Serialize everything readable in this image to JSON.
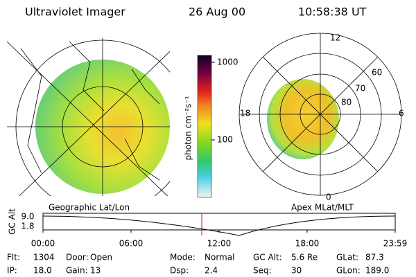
{
  "header": {
    "title": "Ultraviolet Imager",
    "date": "26 Aug 00",
    "time": "10:58:38 UT"
  },
  "colorbar": {
    "label": "photon cm⁻²s⁻¹",
    "ticks": [
      "1000",
      "100"
    ]
  },
  "geo_map": {
    "label": "Geographic Lat/Lon"
  },
  "polar_map": {
    "label": "Apex MLat/MLT",
    "mlt_labels": [
      "12",
      "18",
      "6",
      "0"
    ],
    "mlat_labels": [
      "60",
      "70",
      "80"
    ]
  },
  "altitude_plot": {
    "ylabel": "GC Alt",
    "yticks": [
      "9.0",
      "1.8"
    ],
    "xticks": [
      "00:00",
      "06:00",
      "12:00",
      "18:00",
      "23:59"
    ]
  },
  "status": [
    [
      {
        "label": "Flt:",
        "value": "1304"
      },
      {
        "label": "Door:",
        "value": "Open"
      },
      {
        "label": "Mode:",
        "value": "Normal"
      },
      {
        "label": "GC Alt:",
        "value": "5.6 Re"
      },
      {
        "label": "GLat:",
        "value": "87.3"
      }
    ],
    [
      {
        "label": "IP:",
        "value": "18.0"
      },
      {
        "label": "Gain:",
        "value": "13"
      },
      {
        "label": "Dsp:",
        "value": "2.4"
      },
      {
        "label": "Seq:",
        "value": "30"
      },
      {
        "label": "GLon:",
        "value": "189.0"
      }
    ]
  ]
}
